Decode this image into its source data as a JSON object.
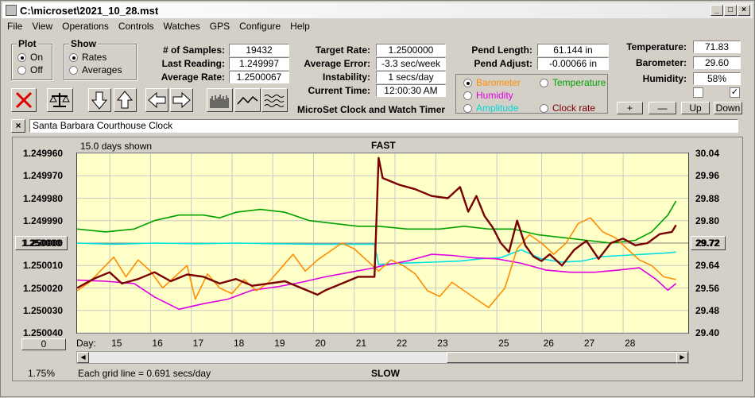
{
  "window": {
    "title": "C:\\microset\\2021_10_28.mst"
  },
  "menu": [
    "File",
    "View",
    "Operations",
    "Controls",
    "Watches",
    "GPS",
    "Configure",
    "Help"
  ],
  "plot_group": {
    "legend": "Plot",
    "on": "On",
    "off": "Off",
    "selected": "On"
  },
  "show_group": {
    "legend": "Show",
    "rates": "Rates",
    "averages": "Averages",
    "selected": "Rates"
  },
  "stats": {
    "samples_label": "# of Samples:",
    "samples": "19432",
    "last_label": "Last Reading:",
    "last": "1.249997",
    "avg_label": "Average Rate:",
    "avg": "1.2500067",
    "target_label": "Target Rate:",
    "target": "1.2500000",
    "avgerr_label": "Average Error:",
    "avgerr": "-3.3 sec/week",
    "instab_label": "Instability:",
    "instab": "1 secs/day",
    "time_label": "Current Time:",
    "time": "12:00:30 AM",
    "pend_len_label": "Pend Length:",
    "pend_len": "61.144 in",
    "pend_adj_label": "Pend Adjust:",
    "pend_adj": "-0.00066 in",
    "temp_label": "Temperature:",
    "temp": "71.83",
    "baro_label": "Barometer:",
    "baro": "29.60",
    "hum_label": "Humidity:",
    "hum": "58%"
  },
  "app_caption": "MicroSet Clock and Watch Timer",
  "sensor_options": {
    "barometer": "Barometer",
    "temperature": "Temperature",
    "humidity": "Humidity",
    "amplitude": "Amplitude",
    "clock_rate": "Clock rate",
    "selected": "Barometer"
  },
  "adjust_buttons": {
    "plus": "+",
    "minus": "—",
    "up": "Up",
    "down": "Down"
  },
  "clock_name": "Santa Barbara Courthouse Clock",
  "graph": {
    "days_shown": "15.0 days shown",
    "fast": "FAST",
    "slow": "SLOW",
    "grid_note": "Each grid line = 0.691 secs/day",
    "zoom": "1.75%",
    "left_button": "1.250000",
    "right_button": "29.72",
    "bottom_button": "0",
    "day_label": "Day:"
  },
  "chart_data": {
    "type": "line",
    "x_label": "Day:",
    "x_ticks": [
      "15",
      "16",
      "17",
      "18",
      "19",
      "20",
      "21",
      "22",
      "23",
      "25",
      "26",
      "27",
      "28"
    ],
    "x_tick_days": [
      15,
      16,
      17,
      18,
      19,
      20,
      21,
      22,
      23,
      24.5,
      25.6,
      26.6,
      27.6
    ],
    "x_range": [
      14.1,
      29.1
    ],
    "y_left_ticks": [
      "1.249960",
      "1.249970",
      "1.249980",
      "1.249990",
      "1.250000",
      "1.250010",
      "1.250020",
      "1.250030",
      "1.250040"
    ],
    "y_left_range": [
      1.25004,
      1.24996
    ],
    "y_right_ticks": [
      "30.04",
      "29.96",
      "29.88",
      "29.80",
      "29.72",
      "29.64",
      "29.56",
      "29.48",
      "29.40"
    ],
    "y_right_range": [
      29.4,
      30.04
    ],
    "colors": {
      "clock_rate": "#7a0000",
      "barometer": "#ff8c00",
      "temperature": "#00a000",
      "humidity": "#e000e0",
      "amplitude": "#00e0e0"
    },
    "series": [
      {
        "key": "temperature",
        "axis": "right",
        "x": [
          14.1,
          14.8,
          15.5,
          16.0,
          16.6,
          17.2,
          17.6,
          18.0,
          18.6,
          19.2,
          19.8,
          20.4,
          21.0,
          21.5,
          22.2,
          23.0,
          23.6,
          24.2,
          24.8,
          25.4,
          26.0,
          26.6,
          27.2,
          27.8,
          28.2,
          28.6,
          28.8
        ],
        "y": [
          29.77,
          29.76,
          29.77,
          29.8,
          29.82,
          29.82,
          29.81,
          29.83,
          29.84,
          29.83,
          29.8,
          29.79,
          29.78,
          29.78,
          29.77,
          29.77,
          29.78,
          29.77,
          29.77,
          29.75,
          29.74,
          29.73,
          29.72,
          29.73,
          29.76,
          29.82,
          29.87
        ]
      },
      {
        "key": "amplitude",
        "axis": "left",
        "x": [
          14.1,
          15.0,
          16.0,
          17.0,
          18.0,
          19.0,
          20.0,
          21.0,
          21.4,
          21.5,
          22.0,
          22.8,
          23.5,
          24.0,
          24.5,
          25.0,
          25.5,
          26.0,
          26.5,
          27.0,
          27.5,
          28.0,
          28.5,
          28.8
        ],
        "y": [
          1.25,
          1.2500005,
          1.25,
          1.2500003,
          1.25,
          1.2500003,
          1.2500005,
          1.2500005,
          1.2500005,
          1.2500095,
          1.250009,
          1.2500085,
          1.250008,
          1.250007,
          1.2500065,
          1.250003,
          1.250007,
          1.2500085,
          1.250008,
          1.250006,
          1.2500055,
          1.250005,
          1.2500045,
          1.250004
        ]
      },
      {
        "key": "humidity",
        "axis": "left",
        "x": [
          14.1,
          14.8,
          15.5,
          16.0,
          16.6,
          17.2,
          17.8,
          18.4,
          19.0,
          19.6,
          20.2,
          20.8,
          21.4,
          21.6,
          22.2,
          22.8,
          23.3,
          23.8,
          24.4,
          25.0,
          25.6,
          26.2,
          26.8,
          27.4,
          27.9,
          28.3,
          28.6,
          28.8
        ],
        "y": [
          1.2500165,
          1.250017,
          1.250018,
          1.250024,
          1.2500295,
          1.250027,
          1.250025,
          1.250021,
          1.2500195,
          1.2500175,
          1.250015,
          1.250013,
          1.250011,
          1.25001,
          1.250008,
          1.250005,
          1.2500055,
          1.2500065,
          1.250007,
          1.250009,
          1.250012,
          1.250013,
          1.250013,
          1.250012,
          1.250011,
          1.250016,
          1.250021,
          1.250018
        ]
      },
      {
        "key": "barometer",
        "axis": "right",
        "x": [
          14.1,
          14.4,
          14.8,
          15.0,
          15.3,
          15.6,
          15.9,
          16.2,
          16.5,
          16.8,
          17.0,
          17.3,
          17.6,
          17.9,
          18.2,
          18.5,
          18.8,
          19.1,
          19.4,
          19.7,
          20.0,
          20.3,
          20.6,
          20.9,
          21.2,
          21.5,
          21.8,
          22.1,
          22.4,
          22.7,
          23.0,
          23.3,
          23.6,
          23.9,
          24.2,
          24.6,
          24.9,
          25.2,
          25.5,
          25.8,
          26.1,
          26.4,
          26.7,
          27.0,
          27.3,
          27.6,
          27.9,
          28.2,
          28.5,
          28.8
        ],
        "y": [
          29.55,
          29.58,
          29.64,
          29.67,
          29.6,
          29.66,
          29.62,
          29.56,
          29.6,
          29.64,
          29.52,
          29.61,
          29.56,
          29.54,
          29.59,
          29.55,
          29.58,
          29.63,
          29.68,
          29.62,
          29.66,
          29.69,
          29.72,
          29.7,
          29.66,
          29.62,
          29.66,
          29.64,
          29.61,
          29.55,
          29.53,
          29.58,
          29.55,
          29.52,
          29.49,
          29.56,
          29.7,
          29.75,
          29.72,
          29.68,
          29.72,
          29.79,
          29.81,
          29.76,
          29.74,
          29.7,
          29.66,
          29.64,
          29.6,
          29.59
        ]
      },
      {
        "key": "clock_rate",
        "axis": "left",
        "x": [
          14.1,
          14.5,
          14.9,
          15.2,
          15.6,
          16.0,
          16.4,
          16.8,
          17.2,
          17.6,
          18.0,
          18.4,
          18.8,
          19.2,
          19.6,
          20.0,
          20.2,
          20.6,
          21.0,
          21.4,
          21.5,
          21.6,
          22.0,
          22.4,
          22.8,
          23.2,
          23.5,
          23.7,
          23.9,
          24.1,
          24.3,
          24.5,
          24.7,
          24.9,
          25.1,
          25.3,
          25.5,
          25.7,
          26.0,
          26.3,
          26.6,
          26.9,
          27.2,
          27.5,
          27.8,
          28.1,
          28.4,
          28.7,
          28.8
        ],
        "y": [
          1.25002,
          1.250016,
          1.250013,
          1.250018,
          1.250016,
          1.250013,
          1.250017,
          1.250014,
          1.250015,
          1.250018,
          1.250016,
          1.250019,
          1.250018,
          1.250017,
          1.25002,
          1.250023,
          1.250021,
          1.250018,
          1.250015,
          1.250015,
          1.249962,
          1.249971,
          1.249974,
          1.249976,
          1.249979,
          1.24998,
          1.249975,
          1.249986,
          1.249979,
          1.249988,
          1.249993,
          1.25,
          1.250004,
          1.24999,
          1.250001,
          1.250006,
          1.250008,
          1.250005,
          1.25001,
          1.250003,
          1.249999,
          1.250007,
          1.25,
          1.249998,
          1.250001,
          1.25,
          1.249996,
          1.249995,
          1.249992
        ]
      }
    ]
  }
}
